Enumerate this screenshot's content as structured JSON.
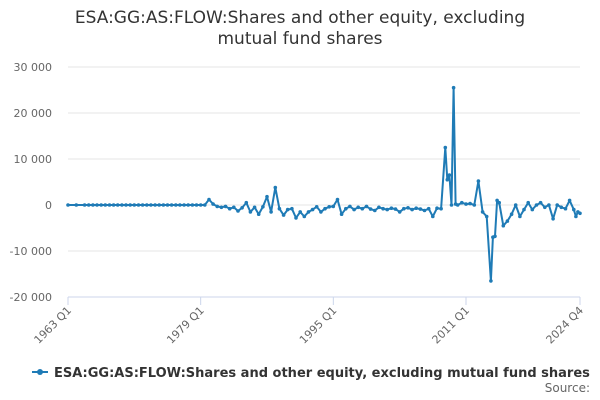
{
  "chart_title_line1": "ESA:GG:AS:FLOW:Shares and other equity, excluding",
  "chart_title_line2": "mutual fund shares",
  "source_label": "Source:",
  "accent_color": "#1f7bb6",
  "chart_data": {
    "type": "line",
    "title": "ESA:GG:AS:FLOW:Shares and other equity, excluding mutual fund shares",
    "xlabel": "",
    "ylabel": "",
    "x_tick_labels": [
      "1963 Q1",
      "1979 Q1",
      "1995 Q1",
      "2011 Q1",
      "2024 Q4"
    ],
    "y_tick_labels": [
      "-20 000",
      "-10 000",
      "0",
      "10 000",
      "20 000",
      "30 000"
    ],
    "ylim": [
      -20000,
      30000
    ],
    "y_ticks": [
      -20000,
      -10000,
      0,
      10000,
      20000,
      30000
    ],
    "x_ticks": [
      "1963 Q1",
      "1979 Q1",
      "1995 Q1",
      "2011 Q1",
      "2024 Q4"
    ],
    "grid": true,
    "legend": "bottom",
    "series": [
      {
        "name": "ESA:GG:AS:FLOW:Shares and other equity, excluding mutual fund shares",
        "points": [
          [
            "1963 Q1",
            0
          ],
          [
            "1964 Q1",
            0
          ],
          [
            "1965 Q1",
            0
          ],
          [
            "1965 Q3",
            0
          ],
          [
            "1966 Q1",
            0
          ],
          [
            "1966 Q3",
            0
          ],
          [
            "1967 Q1",
            0
          ],
          [
            "1967 Q3",
            0
          ],
          [
            "1968 Q1",
            0
          ],
          [
            "1968 Q3",
            0
          ],
          [
            "1969 Q1",
            0
          ],
          [
            "1969 Q3",
            0
          ],
          [
            "1970 Q1",
            0
          ],
          [
            "1970 Q3",
            0
          ],
          [
            "1971 Q1",
            0
          ],
          [
            "1971 Q3",
            0
          ],
          [
            "1972 Q1",
            0
          ],
          [
            "1972 Q3",
            0
          ],
          [
            "1973 Q1",
            0
          ],
          [
            "1973 Q3",
            0
          ],
          [
            "1974 Q1",
            0
          ],
          [
            "1974 Q3",
            0
          ],
          [
            "1975 Q1",
            0
          ],
          [
            "1975 Q3",
            0
          ],
          [
            "1976 Q1",
            0
          ],
          [
            "1976 Q3",
            0
          ],
          [
            "1977 Q1",
            0
          ],
          [
            "1977 Q3",
            0
          ],
          [
            "1978 Q1",
            0
          ],
          [
            "1978 Q3",
            0
          ],
          [
            "1979 Q1",
            0
          ],
          [
            "1979 Q3",
            0
          ],
          [
            "1980 Q1",
            1200
          ],
          [
            "1980 Q3",
            200
          ],
          [
            "1981 Q1",
            -300
          ],
          [
            "1981 Q3",
            -500
          ],
          [
            "1982 Q1",
            -300
          ],
          [
            "1982 Q3",
            -800
          ],
          [
            "1983 Q1",
            -500
          ],
          [
            "1983 Q3",
            -1300
          ],
          [
            "1984 Q1",
            -600
          ],
          [
            "1984 Q3",
            500
          ],
          [
            "1985 Q1",
            -1500
          ],
          [
            "1985 Q3",
            -500
          ],
          [
            "1986 Q1",
            -2000
          ],
          [
            "1986 Q3",
            -400
          ],
          [
            "1987 Q1",
            1800
          ],
          [
            "1987 Q3",
            -1500
          ],
          [
            "1988 Q1",
            3800
          ],
          [
            "1988 Q3",
            -800
          ],
          [
            "1989 Q1",
            -2200
          ],
          [
            "1989 Q3",
            -1000
          ],
          [
            "1990 Q1",
            -800
          ],
          [
            "1990 Q3",
            -2800
          ],
          [
            "1991 Q1",
            -1500
          ],
          [
            "1991 Q3",
            -2500
          ],
          [
            "1992 Q1",
            -1500
          ],
          [
            "1992 Q3",
            -1000
          ],
          [
            "1993 Q1",
            -400
          ],
          [
            "1993 Q3",
            -1500
          ],
          [
            "1994 Q1",
            -800
          ],
          [
            "1994 Q3",
            -400
          ],
          [
            "1995 Q1",
            -300
          ],
          [
            "1995 Q3",
            1200
          ],
          [
            "1996 Q1",
            -2000
          ],
          [
            "1996 Q3",
            -800
          ],
          [
            "1997 Q1",
            -300
          ],
          [
            "1997 Q3",
            -1000
          ],
          [
            "1998 Q1",
            -500
          ],
          [
            "1998 Q3",
            -800
          ],
          [
            "1999 Q1",
            -300
          ],
          [
            "1999 Q3",
            -900
          ],
          [
            "2000 Q1",
            -1200
          ],
          [
            "2000 Q3",
            -500
          ],
          [
            "2001 Q1",
            -800
          ],
          [
            "2001 Q3",
            -1000
          ],
          [
            "2002 Q1",
            -700
          ],
          [
            "2002 Q3",
            -900
          ],
          [
            "2003 Q1",
            -1500
          ],
          [
            "2003 Q3",
            -800
          ],
          [
            "2004 Q1",
            -600
          ],
          [
            "2004 Q3",
            -1000
          ],
          [
            "2005 Q1",
            -700
          ],
          [
            "2005 Q3",
            -900
          ],
          [
            "2006 Q1",
            -1200
          ],
          [
            "2006 Q3",
            -800
          ],
          [
            "2007 Q1",
            -2500
          ],
          [
            "2007 Q3",
            -700
          ],
          [
            "2008 Q1",
            -800
          ],
          [
            "2008 Q3",
            12500
          ],
          [
            "2008 Q4",
            5500
          ],
          [
            "2009 Q1",
            6500
          ],
          [
            "2009 Q2",
            0
          ],
          [
            "2009 Q3",
            25500
          ],
          [
            "2009 Q4",
            200
          ],
          [
            "2010 Q1",
            0
          ],
          [
            "2010 Q3",
            500
          ],
          [
            "2011 Q1",
            200
          ],
          [
            "2011 Q3",
            300
          ],
          [
            "2012 Q1",
            0
          ],
          [
            "2012 Q3",
            5200
          ],
          [
            "2013 Q1",
            -1500
          ],
          [
            "2013 Q3",
            -2500
          ],
          [
            "2014 Q1",
            -16500
          ],
          [
            "2014 Q2",
            -7000
          ],
          [
            "2014 Q3",
            -6800
          ],
          [
            "2014 Q4",
            1000
          ],
          [
            "2015 Q1",
            500
          ],
          [
            "2015 Q3",
            -4500
          ],
          [
            "2016 Q1",
            -3500
          ],
          [
            "2016 Q3",
            -2000
          ],
          [
            "2017 Q1",
            0
          ],
          [
            "2017 Q3",
            -2500
          ],
          [
            "2018 Q1",
            -1000
          ],
          [
            "2018 Q3",
            500
          ],
          [
            "2019 Q1",
            -1000
          ],
          [
            "2019 Q3",
            0
          ],
          [
            "2020 Q1",
            500
          ],
          [
            "2020 Q3",
            -500
          ],
          [
            "2021 Q1",
            0
          ],
          [
            "2021 Q3",
            -3000
          ],
          [
            "2022 Q1",
            0
          ],
          [
            "2022 Q3",
            -500
          ],
          [
            "2023 Q1",
            -800
          ],
          [
            "2023 Q3",
            1000
          ],
          [
            "2024 Q1",
            -1000
          ],
          [
            "2024 Q2",
            -2500
          ],
          [
            "2024 Q3",
            -1500
          ],
          [
            "2024 Q4",
            -1800
          ]
        ]
      }
    ]
  }
}
